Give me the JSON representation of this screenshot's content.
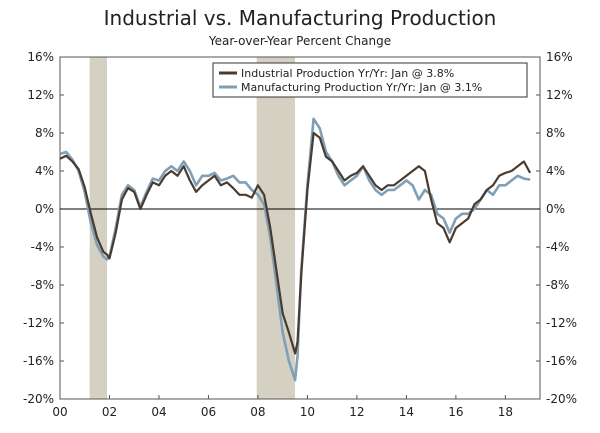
{
  "chart_data": {
    "type": "line",
    "title": "Industrial vs. Manufacturing Production",
    "subtitle": "Year-over-Year Percent Change",
    "xlabel": "",
    "ylabel": "",
    "x_range": [
      2000,
      2019.4
    ],
    "ylim": [
      -20,
      16
    ],
    "y_ticks": [
      "16%",
      "12%",
      "8%",
      "4%",
      "0%",
      "-4%",
      "-8%",
      "-12%",
      "-16%",
      "-20%"
    ],
    "x_ticks": [
      {
        "value": 2000,
        "label": "00"
      },
      {
        "value": 2002,
        "label": "02"
      },
      {
        "value": 2004,
        "label": "04"
      },
      {
        "value": 2006,
        "label": "06"
      },
      {
        "value": 2008,
        "label": "08"
      },
      {
        "value": 2010,
        "label": "10"
      },
      {
        "value": 2012,
        "label": "12"
      },
      {
        "value": 2014,
        "label": "14"
      },
      {
        "value": 2016,
        "label": "16"
      },
      {
        "value": 2018,
        "label": "18"
      }
    ],
    "recessions": [
      {
        "start": 2001.2,
        "end": 2001.9
      },
      {
        "start": 2007.95,
        "end": 2009.5
      }
    ],
    "legend_position": "top-right",
    "colors": {
      "industrial": "#4a3b2e",
      "manufacturing": "#7f9fb6",
      "recession": "#d4d1c3",
      "zero_line": "#000000"
    },
    "series": [
      {
        "key": "industrial",
        "name": "Industrial Production Yr/Yr: Jan @ 3.8%",
        "x": [
          2000.0,
          2000.25,
          2000.5,
          2000.75,
          2001.0,
          2001.25,
          2001.5,
          2001.75,
          2001.9,
          2002.0,
          2002.25,
          2002.5,
          2002.75,
          2003.0,
          2003.25,
          2003.5,
          2003.75,
          2004.0,
          2004.25,
          2004.5,
          2004.75,
          2005.0,
          2005.25,
          2005.5,
          2005.75,
          2006.0,
          2006.25,
          2006.5,
          2006.75,
          2007.0,
          2007.25,
          2007.5,
          2007.75,
          2008.0,
          2008.25,
          2008.5,
          2008.75,
          2009.0,
          2009.25,
          2009.5,
          2009.6,
          2009.75,
          2010.0,
          2010.25,
          2010.5,
          2010.75,
          2011.0,
          2011.25,
          2011.5,
          2011.75,
          2012.0,
          2012.25,
          2012.5,
          2012.75,
          2013.0,
          2013.25,
          2013.5,
          2013.75,
          2014.0,
          2014.25,
          2014.5,
          2014.75,
          2015.0,
          2015.25,
          2015.5,
          2015.75,
          2016.0,
          2016.25,
          2016.5,
          2016.75,
          2017.0,
          2017.25,
          2017.5,
          2017.75,
          2018.0,
          2018.25,
          2018.5,
          2018.75,
          2019.0
        ],
        "y": [
          5.3,
          5.6,
          5.0,
          4.2,
          2.3,
          -0.5,
          -3.0,
          -4.5,
          -4.8,
          -5.2,
          -2.5,
          1.0,
          2.2,
          1.8,
          0.0,
          1.5,
          2.8,
          2.5,
          3.5,
          4.0,
          3.5,
          4.5,
          3.0,
          1.8,
          2.5,
          3.0,
          3.5,
          2.5,
          2.8,
          2.2,
          1.5,
          1.5,
          1.2,
          2.5,
          1.5,
          -2.0,
          -6.5,
          -11.0,
          -13.0,
          -15.2,
          -14.0,
          -7.0,
          2.0,
          8.0,
          7.5,
          5.5,
          5.0,
          4.0,
          3.0,
          3.5,
          3.8,
          4.5,
          3.5,
          2.5,
          2.0,
          2.5,
          2.5,
          3.0,
          3.5,
          4.0,
          4.5,
          4.0,
          1.0,
          -1.5,
          -2.0,
          -3.5,
          -2.0,
          -1.5,
          -1.0,
          0.5,
          1.0,
          2.0,
          2.5,
          3.5,
          3.8,
          4.0,
          4.5,
          5.0,
          3.8
        ]
      },
      {
        "key": "manufacturing",
        "name": "Manufacturing Production Yr/Yr: Jan @ 3.1%",
        "x": [
          2000.0,
          2000.25,
          2000.5,
          2000.75,
          2001.0,
          2001.25,
          2001.5,
          2001.75,
          2001.9,
          2002.0,
          2002.25,
          2002.5,
          2002.75,
          2003.0,
          2003.25,
          2003.5,
          2003.75,
          2004.0,
          2004.25,
          2004.5,
          2004.75,
          2005.0,
          2005.25,
          2005.5,
          2005.75,
          2006.0,
          2006.25,
          2006.5,
          2006.75,
          2007.0,
          2007.25,
          2007.5,
          2007.75,
          2008.0,
          2008.25,
          2008.5,
          2008.75,
          2009.0,
          2009.25,
          2009.5,
          2009.6,
          2009.75,
          2010.0,
          2010.25,
          2010.5,
          2010.75,
          2011.0,
          2011.25,
          2011.5,
          2011.75,
          2012.0,
          2012.25,
          2012.5,
          2012.75,
          2013.0,
          2013.25,
          2013.5,
          2013.75,
          2014.0,
          2014.25,
          2014.5,
          2014.75,
          2015.0,
          2015.25,
          2015.5,
          2015.75,
          2016.0,
          2016.25,
          2016.5,
          2016.75,
          2017.0,
          2017.25,
          2017.5,
          2017.75,
          2018.0,
          2018.25,
          2018.5,
          2018.75,
          2019.0
        ],
        "y": [
          5.8,
          6.0,
          5.2,
          4.0,
          1.8,
          -1.5,
          -3.8,
          -5.0,
          -5.3,
          -5.0,
          -2.0,
          1.5,
          2.5,
          2.0,
          0.2,
          1.8,
          3.2,
          3.0,
          4.0,
          4.5,
          4.0,
          5.0,
          4.0,
          2.5,
          3.5,
          3.5,
          3.8,
          3.0,
          3.2,
          3.5,
          2.8,
          2.8,
          2.0,
          1.5,
          0.5,
          -3.0,
          -8.0,
          -13.0,
          -16.0,
          -18.0,
          -15.5,
          -6.5,
          2.5,
          9.5,
          8.5,
          6.0,
          5.0,
          3.5,
          2.5,
          3.0,
          3.5,
          4.5,
          3.0,
          2.0,
          1.5,
          2.0,
          2.0,
          2.5,
          3.0,
          2.5,
          1.0,
          2.0,
          1.5,
          -0.5,
          -1.0,
          -2.5,
          -1.0,
          -0.5,
          -0.5,
          0.0,
          1.0,
          2.0,
          1.5,
          2.5,
          2.5,
          3.0,
          3.5,
          3.2,
          3.1
        ]
      }
    ]
  }
}
